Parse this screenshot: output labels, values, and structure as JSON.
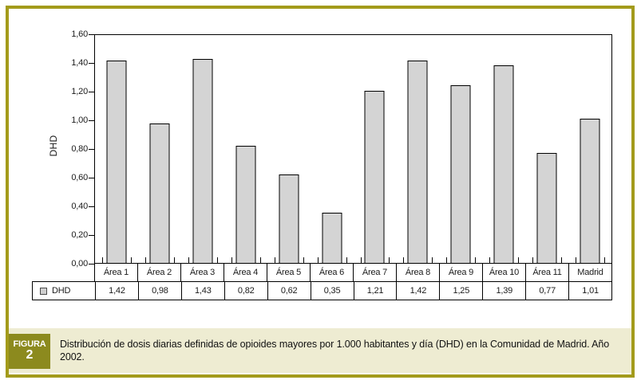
{
  "figure": {
    "label_word": "FIGURA",
    "label_number": "2",
    "caption": "Distribución de dosis diarias definidas de opioides mayores por 1.000 habitantes y día (DHD) en la Comunidad de Madrid. Año 2002."
  },
  "chart_data": {
    "type": "bar",
    "title": "",
    "xlabel": "",
    "ylabel": "DHD",
    "categories": [
      "Área 1",
      "Área 2",
      "Área 3",
      "Área 4",
      "Área 5",
      "Área 6",
      "Área 7",
      "Área 8",
      "Área 9",
      "Área 10",
      "Área 11",
      "Madrid"
    ],
    "series": [
      {
        "name": "DHD",
        "values": [
          1.42,
          0.98,
          1.43,
          0.82,
          0.62,
          0.35,
          1.21,
          1.42,
          1.25,
          1.39,
          0.77,
          1.01
        ]
      }
    ],
    "value_labels": [
      "1,42",
      "0,98",
      "1,43",
      "0,82",
      "0,62",
      "0,35",
      "1,21",
      "1,42",
      "1,25",
      "1,39",
      "0,77",
      "1,01"
    ],
    "ylim": [
      0,
      1.6
    ],
    "ytick_step": 0.2,
    "ytick_labels_bottom_up": [
      "0,00",
      "0,20",
      "0,40",
      "0,60",
      "0,80",
      "1,00",
      "1,20",
      "1,40",
      "1,60"
    ],
    "grid": false,
    "legend": {
      "label": "DHD",
      "position": "bottom-left-table",
      "swatch_color": "#d4d4d4"
    },
    "bar_color": "#d4d4d4",
    "bar_border_color": "#000000"
  },
  "colors": {
    "frame_border": "#a39b1b",
    "figura_block_bg": "#8c8a1e",
    "caption_bg": "#eeecd2",
    "axis_line": "#000000"
  }
}
